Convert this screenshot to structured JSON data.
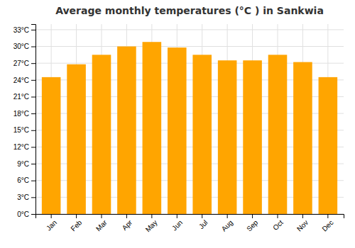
{
  "chart_data": {
    "type": "bar",
    "title": "Average monthly temperatures (°C ) in Sankwia",
    "categories": [
      "Jan",
      "Feb",
      "Mar",
      "Apr",
      "May",
      "Jun",
      "Jul",
      "Aug",
      "Sep",
      "Oct",
      "Nov",
      "Dec"
    ],
    "values": [
      24.5,
      26.8,
      28.5,
      30.0,
      30.8,
      29.8,
      28.5,
      27.5,
      27.5,
      28.5,
      27.2,
      24.5
    ],
    "color": "#FFA500",
    "ylim": [
      0,
      34
    ],
    "yticks": [
      {
        "value": 0,
        "label": "0°C"
      },
      {
        "value": 3,
        "label": "3°C"
      },
      {
        "value": 6,
        "label": "6°C"
      },
      {
        "value": 9,
        "label": "9°C"
      },
      {
        "value": 12,
        "label": "12°C"
      },
      {
        "value": 15,
        "label": "15°C"
      },
      {
        "value": 18,
        "label": "18°C"
      },
      {
        "value": 21,
        "label": "21°C"
      },
      {
        "value": 24,
        "label": "24°C"
      },
      {
        "value": 27,
        "label": "27°C"
      },
      {
        "value": 30,
        "label": "30°C"
      },
      {
        "value": 33,
        "label": "33°C"
      }
    ],
    "grid": true
  }
}
